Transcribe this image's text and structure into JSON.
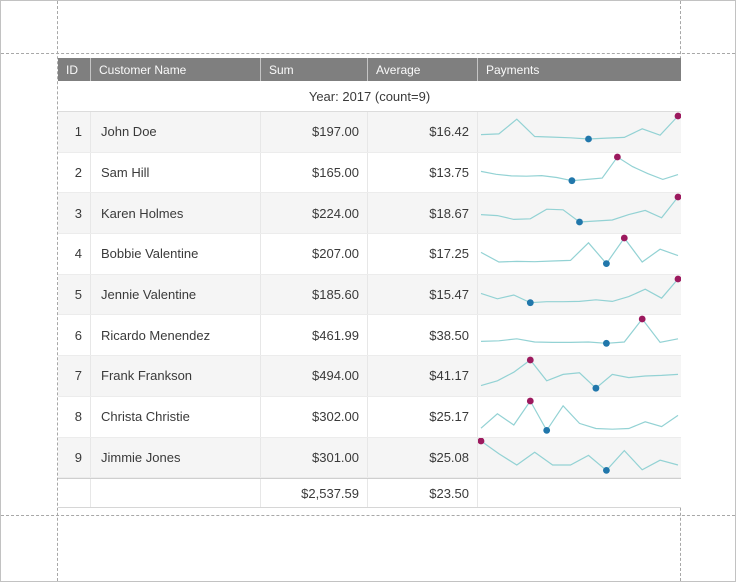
{
  "report": {
    "group_header": "Year: 2017 (count=9)",
    "columns": [
      "ID",
      "Customer Name",
      "Sum",
      "Average",
      "Payments"
    ],
    "rows": [
      {
        "id": "1",
        "name": "John Doe",
        "sum": "$197.00",
        "average": "$16.42",
        "sparkline": {
          "points": [
            0.42,
            0.44,
            0.9,
            0.36,
            0.34,
            0.32,
            0.28,
            0.31,
            0.33,
            0.6,
            0.4,
            1.0
          ],
          "min_index": 6,
          "max_index": 11
        }
      },
      {
        "id": "2",
        "name": "Sam Hill",
        "sum": "$165.00",
        "average": "$13.75",
        "sparkline": {
          "points": [
            0.55,
            0.46,
            0.41,
            0.4,
            0.42,
            0.36,
            0.26,
            0.3,
            0.34,
            1.0,
            0.7,
            0.48,
            0.3,
            0.45
          ],
          "min_index": 6,
          "max_index": 9
        }
      },
      {
        "id": "3",
        "name": "Karen Holmes",
        "sum": "$224.00",
        "average": "$18.67",
        "sparkline": {
          "points": [
            0.45,
            0.42,
            0.3,
            0.32,
            0.62,
            0.6,
            0.22,
            0.25,
            0.28,
            0.45,
            0.58,
            0.35,
            1.0
          ],
          "min_index": 6,
          "max_index": 12
        }
      },
      {
        "id": "4",
        "name": "Bobbie Valentine",
        "sum": "$207.00",
        "average": "$17.25",
        "sparkline": {
          "points": [
            0.55,
            0.25,
            0.27,
            0.26,
            0.28,
            0.3,
            0.85,
            0.2,
            1.0,
            0.25,
            0.65,
            0.45
          ],
          "min_index": 7,
          "max_index": 8
        }
      },
      {
        "id": "5",
        "name": "Jennie Valentine",
        "sum": "$185.60",
        "average": "$15.47",
        "sparkline": {
          "points": [
            0.55,
            0.38,
            0.5,
            0.26,
            0.29,
            0.29,
            0.3,
            0.35,
            0.3,
            0.45,
            0.68,
            0.4,
            1.0
          ],
          "min_index": 3,
          "max_index": 12
        }
      },
      {
        "id": "6",
        "name": "Ricardo Menendez",
        "sum": "$461.99",
        "average": "$38.50",
        "sparkline": {
          "points": [
            0.3,
            0.32,
            0.38,
            0.28,
            0.27,
            0.27,
            0.28,
            0.24,
            0.28,
            1.0,
            0.27,
            0.38
          ],
          "min_index": 7,
          "max_index": 9
        }
      },
      {
        "id": "7",
        "name": "Frank Frankson",
        "sum": "$494.00",
        "average": "$41.17",
        "sparkline": {
          "points": [
            0.2,
            0.35,
            0.62,
            1.0,
            0.35,
            0.55,
            0.6,
            0.12,
            0.55,
            0.45,
            0.5,
            0.52,
            0.55
          ],
          "min_index": 7,
          "max_index": 3
        }
      },
      {
        "id": "8",
        "name": "Christa Christie",
        "sum": "$302.00",
        "average": "$25.17",
        "sparkline": {
          "points": [
            0.15,
            0.6,
            0.25,
            1.0,
            0.08,
            0.85,
            0.3,
            0.14,
            0.12,
            0.14,
            0.35,
            0.2,
            0.55
          ],
          "min_index": 4,
          "max_index": 3
        }
      },
      {
        "id": "9",
        "name": "Jimmie Jones",
        "sum": "$301.00",
        "average": "$25.08",
        "sparkline": {
          "points": [
            1.0,
            0.6,
            0.25,
            0.65,
            0.25,
            0.25,
            0.55,
            0.08,
            0.7,
            0.1,
            0.4,
            0.25
          ],
          "min_index": 7,
          "max_index": 0
        }
      }
    ],
    "footer": {
      "sum": "$2,537.59",
      "average": "$23.50"
    }
  },
  "colors": {
    "header_bg": "#7f7f7f",
    "header_text": "#fafafa",
    "row_band": "#f5f5f5",
    "grid_line": "#e7e7e7",
    "text": "#3a3a3a",
    "margin_dash": "#a8a8a8",
    "sparkline_line": "#93d2d4",
    "min_marker": "#2177ab",
    "max_marker": "#9c195e"
  }
}
